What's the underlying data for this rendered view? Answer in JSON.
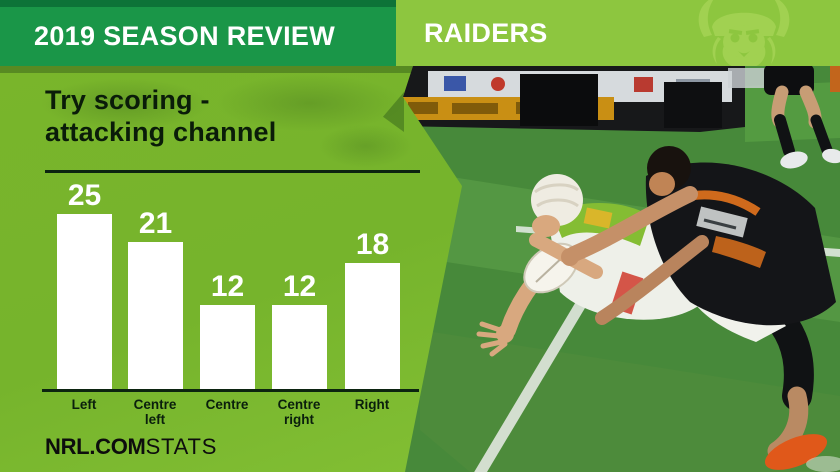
{
  "header": {
    "title": "2019 SEASON REVIEW",
    "team": "RAIDERS",
    "team_logo_icon": "raiders-viking-logo"
  },
  "panel": {
    "title_line1": "Try scoring -",
    "title_line2": "attacking channel"
  },
  "chart_data": {
    "type": "bar",
    "title": "Try scoring - attacking channel",
    "categories": [
      "Left",
      "Centre left",
      "Centre",
      "Centre right",
      "Right"
    ],
    "values": [
      25,
      21,
      12,
      12,
      18
    ],
    "value_labels_shown": true,
    "y_axis_shown": false,
    "grid": false,
    "legend": false,
    "bar_color": "#ffffff",
    "label_color": "#0a1f0c",
    "ylim": [
      0,
      27
    ]
  },
  "footer": {
    "brand_bold": "NRL.COM",
    "brand_light": "STATS"
  },
  "photo": {
    "description_icon": "rugby-try-tackle-photo",
    "elements": [
      "grass-field",
      "try-line",
      "sideline",
      "ad-boards",
      "ball-carrier-raiders",
      "tackler-tigers",
      "background-runner"
    ]
  },
  "colors": {
    "header_green": "#1a9648",
    "header_green_dark": "#0d7338",
    "lime": "#8dc63f",
    "panel_green": "#76b42c",
    "bar_white": "#ffffff",
    "text_dark": "#0a1c09",
    "grass_green": "#47893a"
  }
}
